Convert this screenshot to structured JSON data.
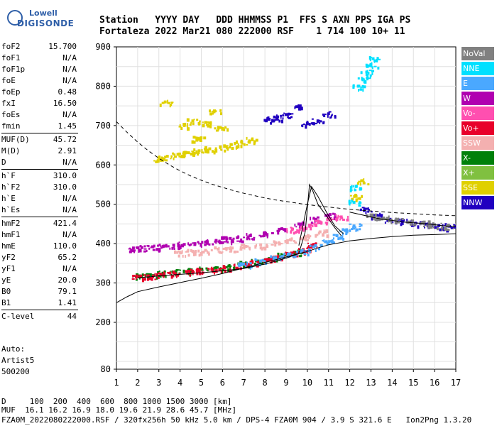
{
  "logo": {
    "top": "Lowell",
    "bottom": "DIGISONDE"
  },
  "header": {
    "line1": "Station   YYYY DAY   DDD HHMMSS P1  FFS S AXN PPS IGA PS",
    "line2": "Fortaleza 2022 Mar21 080 222000 RSF    1 714 100 10+ 11"
  },
  "params": [
    {
      "label": "foF2",
      "value": "15.700"
    },
    {
      "label": "foF1",
      "value": "N/A"
    },
    {
      "label": "foF1p",
      "value": "N/A"
    },
    {
      "label": "foE",
      "value": "N/A"
    },
    {
      "label": "foEp",
      "value": "0.48"
    },
    {
      "label": "fxI",
      "value": "16.50"
    },
    {
      "label": "foEs",
      "value": "N/A"
    },
    {
      "label": "fmin",
      "value": "1.45"
    },
    {
      "label": "MUF(D)",
      "value": "45.72"
    },
    {
      "label": "M(D)",
      "value": "2.91"
    },
    {
      "label": "D",
      "value": "N/A"
    },
    {
      "label": "h`F",
      "value": "310.0"
    },
    {
      "label": "h`F2",
      "value": "310.0"
    },
    {
      "label": "h`E",
      "value": "N/A"
    },
    {
      "label": "h`Es",
      "value": "N/A"
    },
    {
      "label": "hmF2",
      "value": "421.4"
    },
    {
      "label": "hmF1",
      "value": "N/A"
    },
    {
      "label": "hmE",
      "value": "110.0"
    },
    {
      "label": "yF2",
      "value": "65.2"
    },
    {
      "label": "yF1",
      "value": "N/A"
    },
    {
      "label": "yE",
      "value": "20.0"
    },
    {
      "label": "B0",
      "value": "79.1"
    },
    {
      "label": "B1",
      "value": "1.41"
    },
    {
      "label": "C-level",
      "value": "44"
    }
  ],
  "auto": {
    "line1": "Auto:",
    "line2": "Artist5",
    "line3": "500200"
  },
  "legend": [
    {
      "label": "NoVal",
      "color": "#808080"
    },
    {
      "label": "NNE",
      "color": "#00e0ff"
    },
    {
      "label": "E",
      "color": "#4aa8ff"
    },
    {
      "label": "W",
      "color": "#b000b0"
    },
    {
      "label": "Vo-",
      "color": "#ff4fb0"
    },
    {
      "label": "Vo+",
      "color": "#e8002a"
    },
    {
      "label": "SSW",
      "color": "#f4b0b0"
    },
    {
      "label": "X-",
      "color": "#00800a"
    },
    {
      "label": "X+",
      "color": "#80c040"
    },
    {
      "label": "SSE",
      "color": "#e0d000"
    },
    {
      "label": "NNW",
      "color": "#2000c0"
    }
  ],
  "footer": {
    "line1": "D     100  200  400  600  800 1000 1500 3000 [km]",
    "line2": "MUF  16.1 16.2 16.9 18.0 19.6 21.9 28.6 45.7 [MHz]",
    "line3": "FZA0M_2022080222000.RSF / 320fx256h 50 kHz 5.0 km / DPS-4 FZA0M 904 / 3.9 S 321.6 E   Ion2Png 1.3.20"
  },
  "chart_data": {
    "type": "scatter",
    "xlim": [
      1,
      17
    ],
    "ylim": [
      80,
      900
    ],
    "x_ticks": [
      1,
      2,
      3,
      4,
      5,
      6,
      7,
      8,
      9,
      10,
      11,
      12,
      13,
      14,
      15,
      16,
      17
    ],
    "y_ticks": [
      80,
      200,
      300,
      400,
      500,
      600,
      700,
      800,
      900
    ],
    "grid": true,
    "legend_position": "right",
    "series": [
      {
        "name": "X-",
        "color": "#00800a",
        "points": [
          [
            2.1,
            318
          ],
          [
            2.6,
            321
          ],
          [
            3.2,
            325
          ],
          [
            3.8,
            329
          ],
          [
            4.4,
            332
          ],
          [
            5.0,
            335
          ],
          [
            5.7,
            339
          ],
          [
            6.3,
            343
          ],
          [
            7.0,
            349
          ],
          [
            7.6,
            356
          ],
          [
            8.2,
            362
          ],
          [
            8.8,
            370
          ],
          [
            9.4,
            378
          ]
        ]
      },
      {
        "name": "Vo+",
        "color": "#e8002a",
        "points": [
          [
            2.0,
            316
          ],
          [
            2.5,
            318
          ],
          [
            3.1,
            322
          ],
          [
            3.7,
            326
          ],
          [
            4.3,
            329
          ],
          [
            4.9,
            332
          ],
          [
            5.5,
            335
          ],
          [
            6.1,
            339
          ],
          [
            6.8,
            345
          ],
          [
            7.4,
            352
          ],
          [
            8.0,
            358
          ],
          [
            8.6,
            365
          ],
          [
            9.2,
            374
          ],
          [
            9.8,
            385
          ],
          [
            10.3,
            398
          ]
        ]
      },
      {
        "name": "E",
        "color": "#4aa8ff",
        "points": [
          [
            7.0,
            348
          ],
          [
            7.8,
            356
          ],
          [
            8.5,
            364
          ],
          [
            9.1,
            372
          ],
          [
            9.7,
            381
          ],
          [
            10.3,
            392
          ],
          [
            10.9,
            405
          ],
          [
            11.4,
            420
          ],
          [
            11.8,
            433
          ],
          [
            12.2,
            445
          ]
        ]
      },
      {
        "name": "W",
        "color": "#b000b0",
        "points": [
          [
            1.8,
            389
          ],
          [
            2.2,
            390
          ],
          [
            2.7,
            392
          ],
          [
            3.2,
            393
          ],
          [
            3.7,
            396
          ],
          [
            4.2,
            398
          ],
          [
            4.7,
            400
          ],
          [
            5.2,
            404
          ],
          [
            5.7,
            408
          ],
          [
            6.2,
            412
          ],
          [
            6.7,
            415
          ],
          [
            7.3,
            420
          ],
          [
            8.0,
            428
          ],
          [
            8.8,
            438
          ],
          [
            9.6,
            450
          ],
          [
            10.4,
            462
          ],
          [
            11.0,
            472
          ]
        ]
      },
      {
        "name": "SSW",
        "color": "#f4b0b0",
        "points": [
          [
            4.0,
            378
          ],
          [
            4.6,
            380
          ],
          [
            5.2,
            383
          ],
          [
            5.8,
            386
          ],
          [
            6.4,
            389
          ],
          [
            7.1,
            393
          ],
          [
            7.8,
            397
          ],
          [
            8.5,
            402
          ],
          [
            9.2,
            410
          ],
          [
            9.9,
            418
          ],
          [
            10.6,
            430
          ]
        ]
      },
      {
        "name": "Vo-",
        "color": "#ff4fb0",
        "points": [
          [
            9.3,
            437
          ],
          [
            9.7,
            440
          ],
          [
            10.1,
            447
          ],
          [
            10.6,
            455
          ],
          [
            11.1,
            462
          ],
          [
            11.6,
            468
          ]
        ]
      },
      {
        "name": "SSE",
        "color": "#e0d000",
        "points": [
          [
            3.0,
            618
          ],
          [
            3.4,
            622
          ],
          [
            3.9,
            627
          ],
          [
            4.4,
            631
          ],
          [
            4.9,
            636
          ],
          [
            5.4,
            641
          ],
          [
            5.9,
            646
          ],
          [
            6.4,
            652
          ],
          [
            6.9,
            658
          ],
          [
            7.4,
            664
          ],
          [
            4.2,
            700
          ],
          [
            4.6,
            712
          ],
          [
            5.2,
            708
          ],
          [
            5.6,
            735
          ],
          [
            3.3,
            760
          ],
          [
            4.8,
            668
          ],
          [
            5.9,
            695
          ],
          [
            12.3,
            520
          ],
          [
            12.6,
            560
          ]
        ]
      },
      {
        "name": "NNE",
        "color": "#00e0ff",
        "points": [
          [
            12.2,
            505
          ],
          [
            12.3,
            545
          ],
          [
            12.4,
            800
          ],
          [
            12.6,
            818
          ],
          [
            12.8,
            836
          ],
          [
            13.0,
            855
          ],
          [
            13.1,
            870
          ]
        ]
      },
      {
        "name": "NNW",
        "color": "#2000c0",
        "points": [
          [
            8.2,
            716
          ],
          [
            8.6,
            722
          ],
          [
            9.0,
            728
          ],
          [
            9.5,
            748
          ],
          [
            10.0,
            705
          ],
          [
            10.5,
            712
          ],
          [
            11.0,
            730
          ],
          [
            12.7,
            488
          ],
          [
            13.3,
            472
          ],
          [
            13.9,
            462
          ],
          [
            14.5,
            458
          ],
          [
            15.1,
            452
          ],
          [
            15.7,
            450
          ],
          [
            16.2,
            446
          ],
          [
            16.7,
            444
          ]
        ]
      },
      {
        "name": "NoVal",
        "color": "#808080",
        "points": [
          [
            13.0,
            470
          ],
          [
            13.6,
            465
          ],
          [
            14.2,
            460
          ],
          [
            14.8,
            455
          ],
          [
            15.4,
            452
          ],
          [
            16.0,
            448
          ],
          [
            16.6,
            445
          ]
        ]
      }
    ],
    "lines": [
      {
        "name": "profile",
        "style": "solid",
        "points": [
          [
            1,
            250
          ],
          [
            1.5,
            265
          ],
          [
            2,
            278
          ],
          [
            3,
            290
          ],
          [
            4,
            301
          ],
          [
            5,
            312
          ],
          [
            6,
            324
          ],
          [
            7,
            338
          ],
          [
            8,
            352
          ],
          [
            9,
            366
          ],
          [
            10,
            380
          ],
          [
            10.5,
            389
          ],
          [
            11,
            397
          ],
          [
            12,
            407
          ],
          [
            13,
            413
          ],
          [
            14,
            418
          ],
          [
            15,
            421.4
          ],
          [
            16,
            423
          ],
          [
            17,
            425
          ]
        ]
      },
      {
        "name": "trace",
        "style": "solid",
        "points": [
          [
            2,
            313
          ],
          [
            3,
            318
          ],
          [
            4,
            322
          ],
          [
            5,
            326
          ],
          [
            6,
            331
          ],
          [
            7,
            337
          ],
          [
            8,
            348
          ],
          [
            9,
            363
          ],
          [
            9.6,
            375
          ],
          [
            9.9,
            430
          ],
          [
            10.1,
            550
          ],
          [
            10.25,
            535
          ],
          [
            10.5,
            500
          ],
          [
            10.9,
            470
          ],
          [
            11.3,
            440
          ],
          [
            11.6,
            420
          ]
        ]
      },
      {
        "name": "trace-2",
        "style": "solid",
        "points": [
          [
            9.6,
            395
          ],
          [
            10.0,
            500
          ],
          [
            10.2,
            545
          ],
          [
            10.5,
            520
          ],
          [
            10.9,
            480
          ],
          [
            11.3,
            445
          ],
          [
            11.7,
            425
          ]
        ]
      },
      {
        "name": "upper",
        "style": "solid",
        "points": [
          [
            12,
            480
          ],
          [
            12.5,
            474
          ],
          [
            13,
            468
          ],
          [
            13.5,
            462
          ],
          [
            14,
            459
          ],
          [
            14.5,
            455
          ],
          [
            15,
            453
          ],
          [
            15.5,
            451
          ],
          [
            16,
            448
          ],
          [
            16.5,
            445
          ],
          [
            17,
            443
          ]
        ]
      },
      {
        "name": "dashed",
        "style": "dashed",
        "points": [
          [
            1,
            710
          ],
          [
            1.5,
            683
          ],
          [
            2,
            658
          ],
          [
            2.5,
            636
          ],
          [
            3,
            617
          ],
          [
            3.5,
            600
          ],
          [
            4,
            585
          ],
          [
            4.5,
            572
          ],
          [
            5,
            561
          ],
          [
            5.5,
            551
          ],
          [
            6,
            543
          ],
          [
            6.5,
            535
          ],
          [
            7,
            528
          ],
          [
            7.5,
            522
          ],
          [
            8,
            516
          ],
          [
            8.5,
            511
          ],
          [
            9,
            507
          ],
          [
            10,
            499
          ],
          [
            11,
            493
          ],
          [
            12,
            487
          ],
          [
            13,
            483
          ],
          [
            14,
            479
          ],
          [
            15,
            476
          ],
          [
            16,
            473
          ],
          [
            17,
            471
          ]
        ]
      }
    ]
  }
}
